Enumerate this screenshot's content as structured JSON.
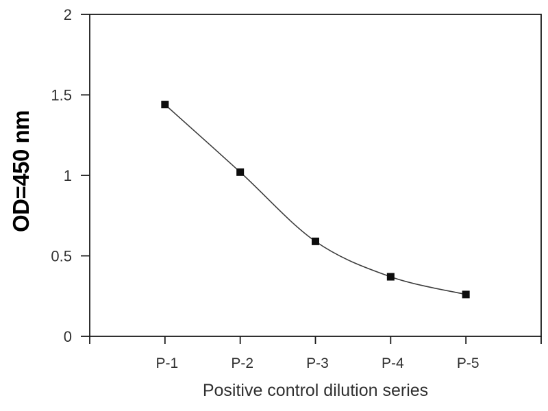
{
  "colors": {
    "background": "#ffffff",
    "axis": "#1a1a1a",
    "tick_text": "#303030",
    "x_title_text": "#303030",
    "y_title_text": "#000000",
    "line": "#3c3c3c",
    "marker": "#0d0d0d"
  },
  "chart_data": {
    "type": "line",
    "title": "",
    "xlabel": "Positive control dilution series",
    "ylabel": "OD=450 nm",
    "categories": [
      "P-1",
      "P-2",
      "P-3",
      "P-4",
      "P-5"
    ],
    "x": [
      1,
      2,
      3,
      4,
      5
    ],
    "values": [
      1.44,
      1.02,
      0.59,
      0.37,
      0.26
    ],
    "xlim": [
      0,
      6
    ],
    "ylim": [
      0,
      2
    ],
    "yticks": [
      0,
      0.5,
      1,
      1.5,
      2
    ],
    "ytick_labels": [
      "0",
      "0.5",
      "1",
      "1.5",
      "2"
    ],
    "grid": false,
    "legend": "none",
    "marker": "filled-square",
    "line_style": "smooth"
  }
}
